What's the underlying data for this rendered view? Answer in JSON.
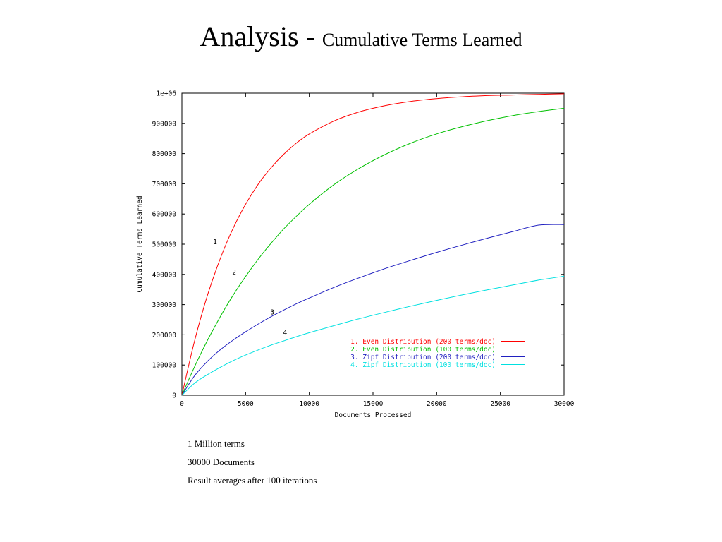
{
  "slide": {
    "title_main": "Analysis - ",
    "title_sub": "Cumulative Terms Learned"
  },
  "notes": [
    "1 Million terms",
    "30000 Documents",
    "Result averages after 100 iterations"
  ],
  "chart_data": {
    "type": "line",
    "xlabel": "Documents Processed",
    "ylabel": "Cumulative Terms Learned",
    "xlim": [
      0,
      30000
    ],
    "ylim": [
      0,
      1000000
    ],
    "x_ticks": [
      0,
      5000,
      10000,
      15000,
      20000,
      25000,
      30000
    ],
    "x_tick_labels": [
      "0",
      "5000",
      "10000",
      "15000",
      "20000",
      "25000",
      "30000"
    ],
    "y_ticks": [
      0,
      100000,
      200000,
      300000,
      400000,
      500000,
      600000,
      700000,
      800000,
      900000,
      1000000
    ],
    "y_tick_labels": [
      "0",
      "100000",
      "200000",
      "300000",
      "400000",
      "500000",
      "600000",
      "700000",
      "800000",
      "900000",
      "1e+06"
    ],
    "grid": false,
    "legend_position": "bottom-right",
    "x": [
      0,
      1000,
      2000,
      3000,
      4000,
      5000,
      6000,
      7000,
      8000,
      9000,
      10000,
      12000,
      14000,
      16000,
      18000,
      20000,
      22000,
      24000,
      26000,
      28000,
      30000
    ],
    "series": [
      {
        "name": "1. Even Distribution (200 terms/doc)",
        "label": "1",
        "label_at": [
          2600,
          500000
        ],
        "color": "#ff0000",
        "values": [
          0,
          181000,
          330000,
          451000,
          551000,
          632000,
          699000,
          753000,
          798000,
          835000,
          865000,
          909000,
          939000,
          959000,
          973000,
          982000,
          988000,
          992000,
          994000,
          996000,
          998000
        ]
      },
      {
        "name": "2. Even Distribution (100 terms/doc)",
        "label": "2",
        "label_at": [
          4100,
          400000
        ],
        "color": "#00c000",
        "values": [
          0,
          95000,
          181000,
          259000,
          330000,
          393000,
          451000,
          503000,
          551000,
          593000,
          632000,
          699000,
          753000,
          798000,
          835000,
          865000,
          889000,
          909000,
          926000,
          939000,
          950000
        ]
      },
      {
        "name": "3. Zipf Distribution (200 terms/doc)",
        "label": "3",
        "label_at": [
          7100,
          268000
        ],
        "color": "#2020c0",
        "values": [
          0,
          65000,
          112000,
          150000,
          182000,
          210000,
          236000,
          260000,
          282000,
          303000,
          322000,
          358000,
          390000,
          420000,
          447000,
          473000,
          497000,
          520000,
          542000,
          563000,
          565000
        ]
      },
      {
        "name": "4. Zipf Distribution (100 terms/doc)",
        "label": "4",
        "label_at": [
          8100,
          200000
        ],
        "color": "#00e0e0",
        "values": [
          0,
          40000,
          68000,
          92000,
          114000,
          133000,
          150000,
          166000,
          180000,
          194000,
          207000,
          231000,
          254000,
          275000,
          295000,
          314000,
          332000,
          349000,
          365000,
          381000,
          394000
        ]
      }
    ]
  }
}
